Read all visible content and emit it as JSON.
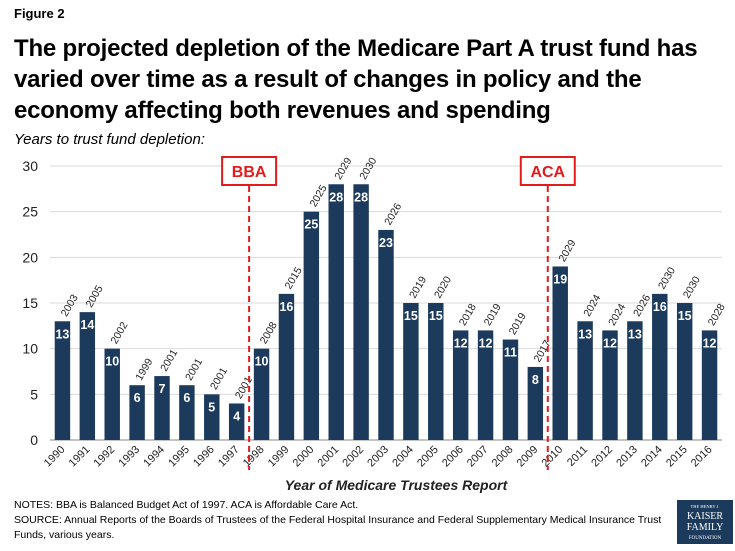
{
  "figure_label": "Figure 2",
  "title": "The projected depletion of the Medicare Part A trust fund has varied over time as a result of changes in policy and the economy affecting both revenues and spending",
  "subtitle": "Years to trust fund depletion:",
  "notes": "NOTES: BBA is Balanced Budget Act of 1997. ACA is Affordable Care Act.",
  "source": "SOURCE: Annual Reports of the Boards of Trustees of the Federal Hospital Insurance and Federal Supplementary Medical Insurance Trust Funds, various years.",
  "logo": {
    "line1": "THE HENRY J.",
    "line2": "KAISER",
    "line3": "FAMILY",
    "line4": "FOUNDATION"
  },
  "colors": {
    "bar": "#1b3a5c",
    "marker": "#e21b1b",
    "grid": "#d9d9d9"
  },
  "chart_data": {
    "type": "bar",
    "xlabel": "Year of Medicare Trustees Report",
    "ylabel": "",
    "ylim": [
      0,
      30
    ],
    "yticks": [
      0,
      5,
      10,
      15,
      20,
      25,
      30
    ],
    "grid": true,
    "categories": [
      "1990",
      "1991",
      "1992",
      "1993",
      "1994",
      "1995",
      "1996",
      "1997",
      "1998",
      "1999",
      "2000",
      "2001",
      "2002",
      "2003",
      "2004",
      "2005",
      "2006",
      "2007",
      "2008",
      "2009",
      "2010",
      "2011",
      "2012",
      "2013",
      "2014",
      "2015",
      "2016"
    ],
    "values": [
      13,
      14,
      10,
      6,
      7,
      6,
      5,
      4,
      10,
      16,
      25,
      28,
      28,
      23,
      15,
      15,
      12,
      12,
      11,
      8,
      19,
      13,
      12,
      13,
      16,
      15,
      12
    ],
    "depletion_years": [
      "2003",
      "2005",
      "2002",
      "1999",
      "2001",
      "2001",
      "2001",
      "2001",
      "2008",
      "2015",
      "2025",
      "2029",
      "2030",
      "2026",
      "2019",
      "2020",
      "2018",
      "2019",
      "2019",
      "2017",
      "2029",
      "2024",
      "2024",
      "2026",
      "2030",
      "2030",
      "2028"
    ],
    "annotations": [
      {
        "label": "BBA",
        "after_category": "1997"
      },
      {
        "label": "ACA",
        "after_category": "2009"
      }
    ]
  }
}
